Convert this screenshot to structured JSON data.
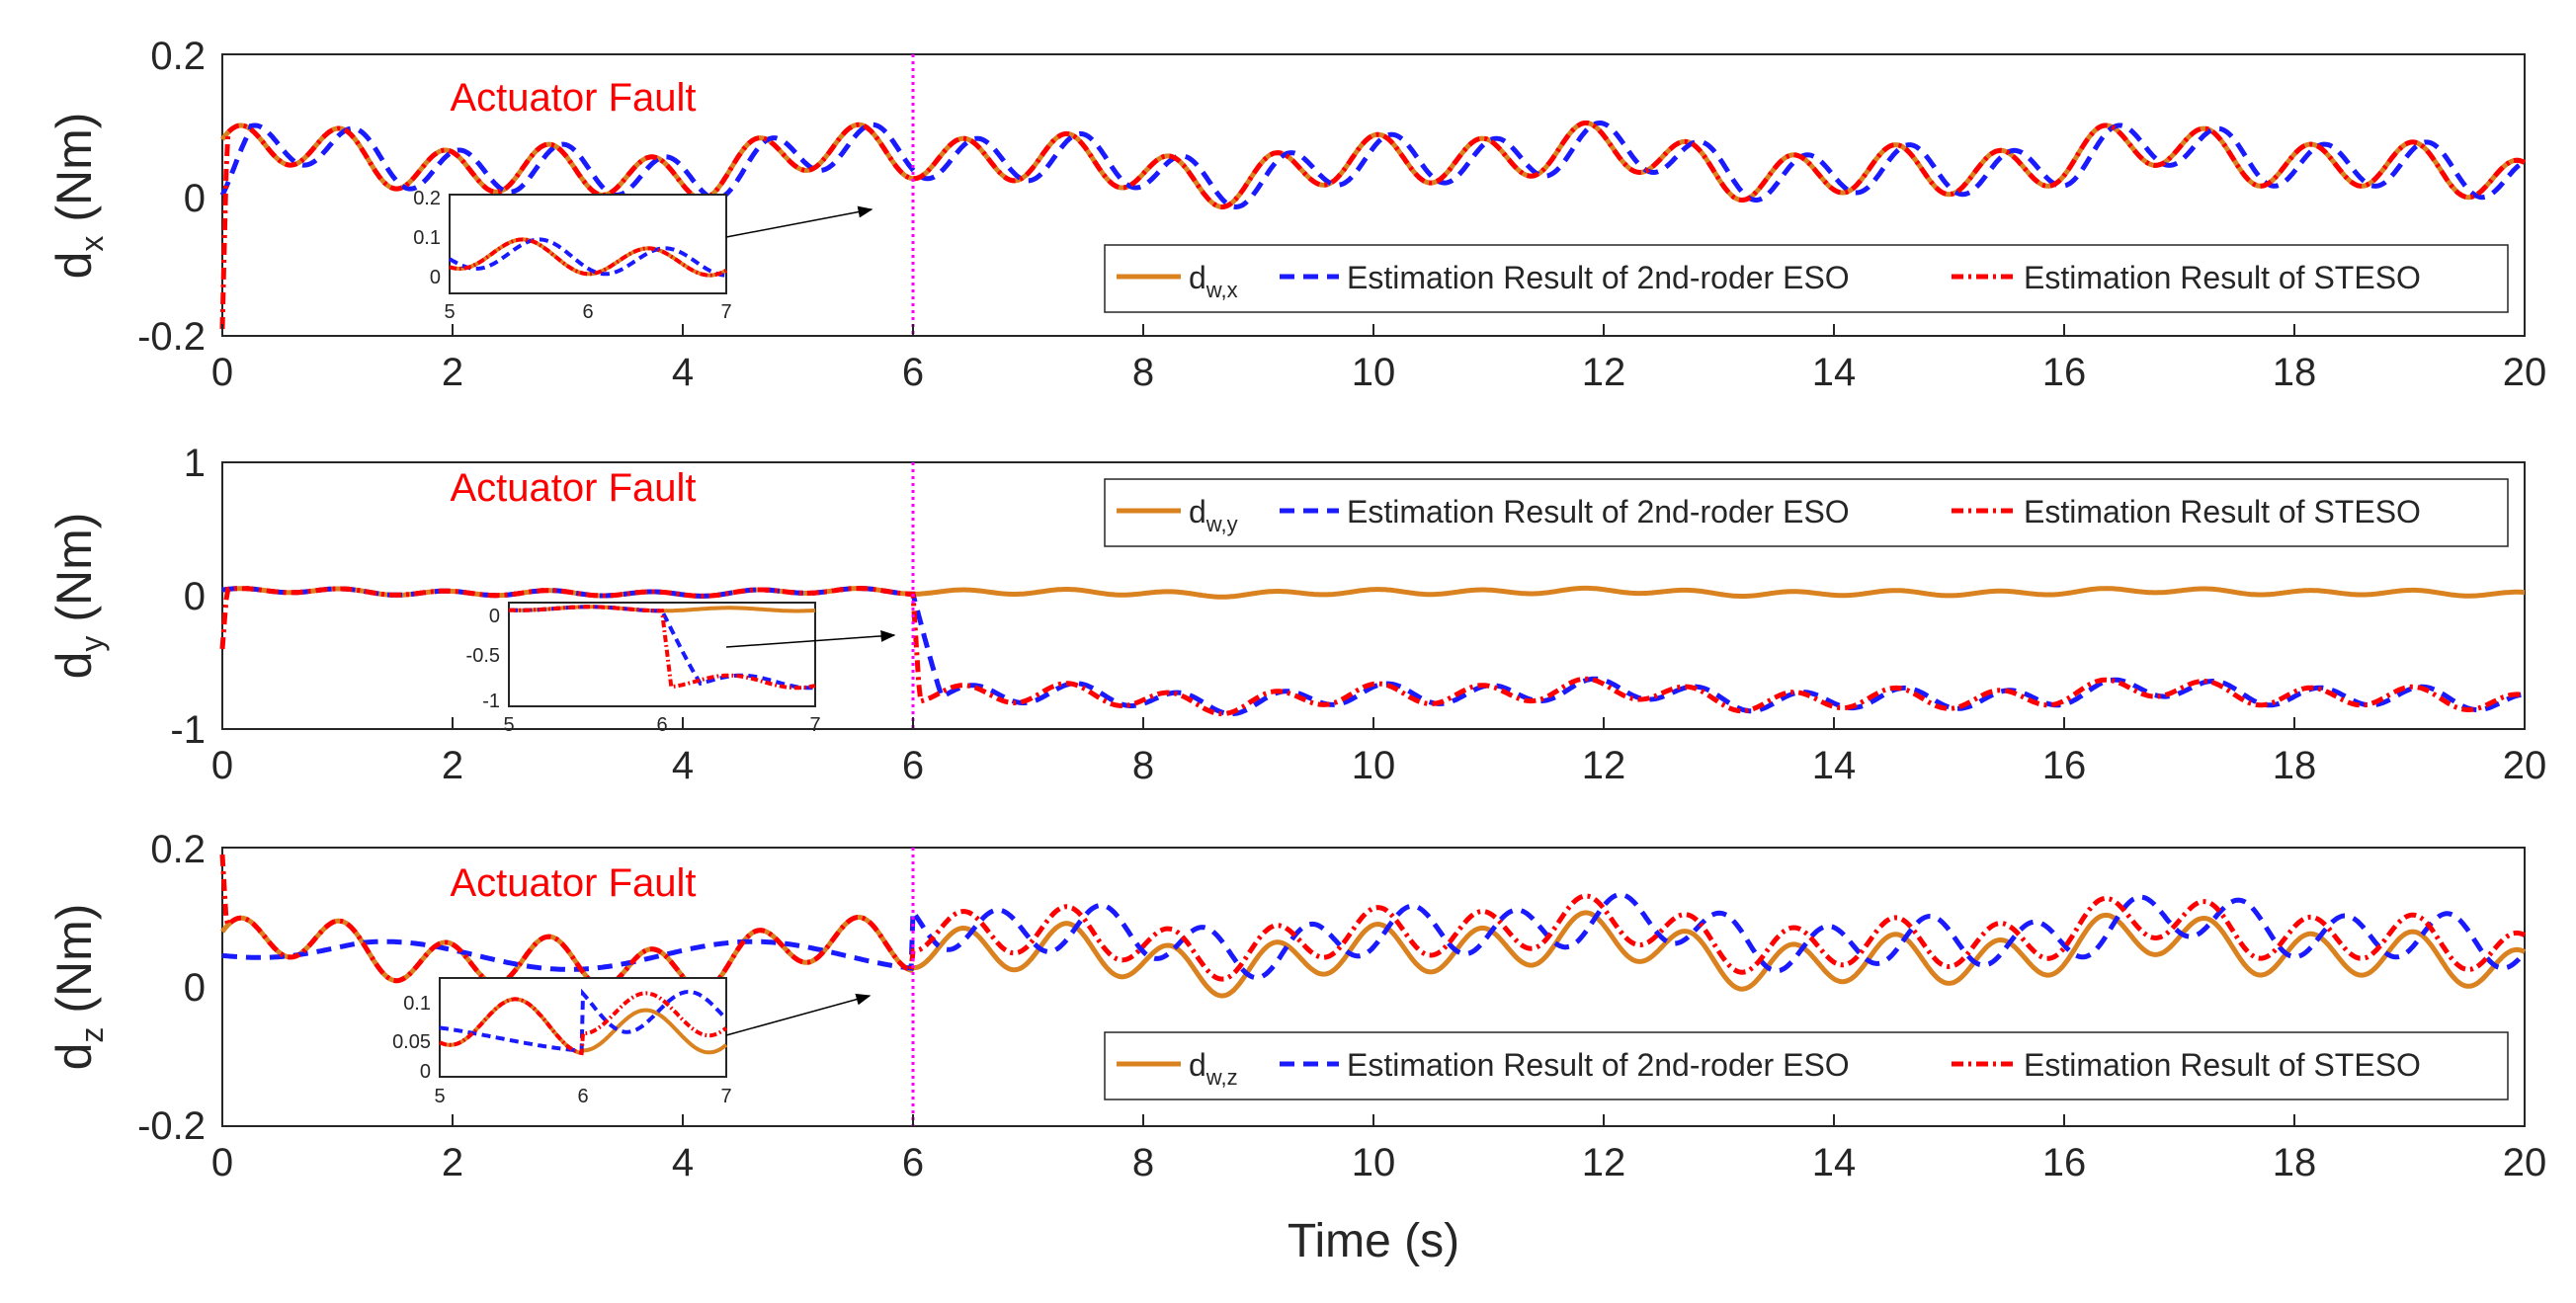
{
  "colors": {
    "dw": "#d9821f",
    "eso": "#1a1aff",
    "steso": "#ff0000",
    "fault_line": "#ff00ff"
  },
  "xlabel": "Time (s)",
  "chart_data": [
    {
      "type": "line",
      "ylabel_main": "d",
      "ylabel_sub": "x",
      "ylabel_unit": " (Nm)",
      "xlim": [
        0,
        20
      ],
      "ylim": [
        -0.2,
        0.2
      ],
      "xticks": [
        "0",
        "2",
        "4",
        "6",
        "8",
        "10",
        "12",
        "14",
        "16",
        "18",
        "20"
      ],
      "yticks": [
        "-0.2",
        "0",
        "0.2"
      ],
      "fault_time": 6,
      "annotation": "Actuator Fault",
      "legend": {
        "dw_main": "d",
        "dw_sub": "w,x",
        "eso": "Estimation Result of 2nd-roder ESO",
        "steso": "Estimation Result of STESO"
      },
      "inset": {
        "xlim": [
          5,
          7
        ],
        "ylim": [
          -0.02,
          0.2
        ],
        "xticks": [
          "5",
          "6",
          "7"
        ],
        "yticks": [
          "0.2",
          "0.1",
          "0"
        ]
      }
    },
    {
      "type": "line",
      "ylabel_main": "d",
      "ylabel_sub": "y",
      "ylabel_unit": " (Nm)",
      "xlim": [
        0,
        20
      ],
      "ylim": [
        -1,
        1
      ],
      "xticks": [
        "0",
        "2",
        "4",
        "6",
        "8",
        "10",
        "12",
        "14",
        "16",
        "18",
        "20"
      ],
      "yticks": [
        "1",
        "0",
        "-1"
      ],
      "fault_time": 6,
      "annotation": "Actuator Fault",
      "legend": {
        "dw_main": "d",
        "dw_sub": "w,y",
        "eso": "Estimation Result of 2nd-roder ESO",
        "steso": "Estimation Result of STESO"
      },
      "inset": {
        "xlim": [
          5,
          7
        ],
        "ylim": [
          -1,
          0.1
        ],
        "xticks": [
          "5",
          "6",
          "7"
        ],
        "yticks": [
          "0",
          "-0.5",
          "-1"
        ]
      }
    },
    {
      "type": "line",
      "ylabel_main": "d",
      "ylabel_sub": "z",
      "ylabel_unit": " (Nm)",
      "xlim": [
        0,
        20
      ],
      "ylim": [
        -0.2,
        0.2
      ],
      "xticks": [
        "0",
        "2",
        "4",
        "6",
        "8",
        "10",
        "12",
        "14",
        "16",
        "18",
        "20"
      ],
      "yticks": [
        "0.2",
        "0",
        "-0.2"
      ],
      "fault_time": 6,
      "annotation": "Actuator Fault",
      "legend": {
        "dw_main": "d",
        "dw_sub": "w,z",
        "eso": "Estimation Result of 2nd-roder ESO",
        "steso": "Estimation Result of STESO"
      },
      "inset": {
        "xlim": [
          5,
          7
        ],
        "ylim": [
          -0.01,
          0.13
        ],
        "xticks": [
          "5",
          "6",
          "7"
        ],
        "yticks": [
          "0.1",
          "0.05",
          "0"
        ]
      }
    }
  ]
}
